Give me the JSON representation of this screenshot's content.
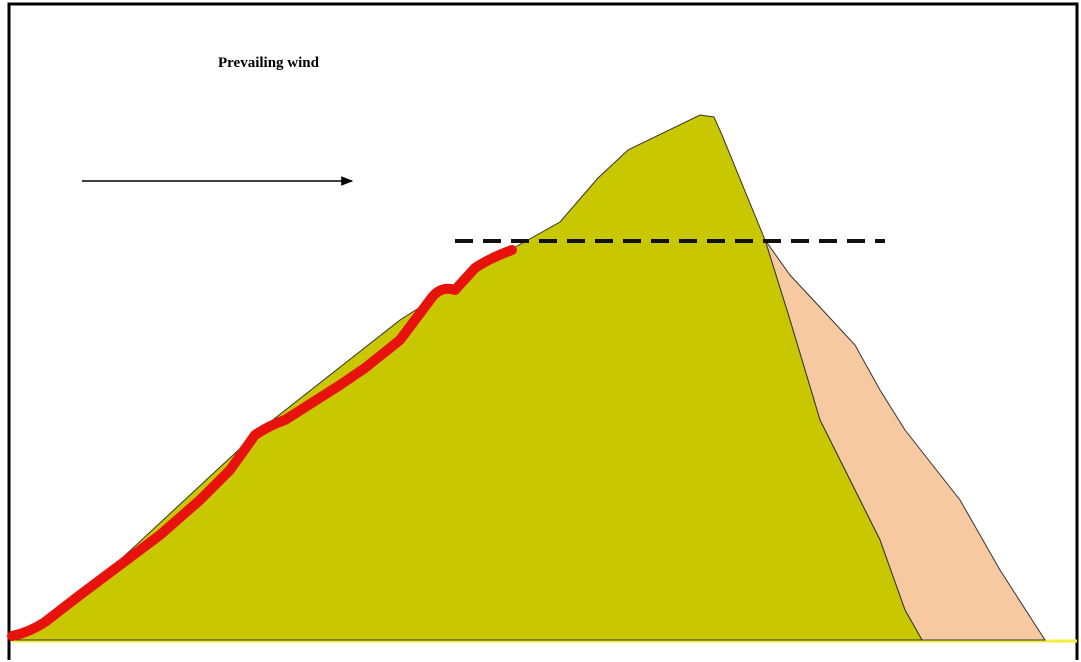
{
  "label": "Prevailing wind"
}
